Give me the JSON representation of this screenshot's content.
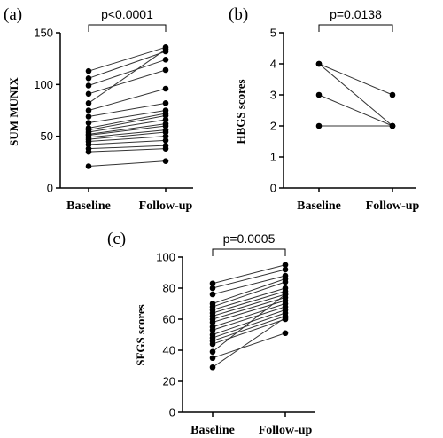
{
  "chart_data": [
    {
      "panel": "(a)",
      "type": "scatter",
      "categories": [
        "Baseline",
        "Follow-up"
      ],
      "ylabel": "SUM MUNIX",
      "ylim": [
        0,
        150
      ],
      "yticks": [
        0,
        50,
        100,
        150
      ],
      "annotation": "p<0.0001",
      "pairs": [
        [
          113,
          136
        ],
        [
          106,
          132
        ],
        [
          99,
          124
        ],
        [
          91,
          114
        ],
        [
          82,
          134
        ],
        [
          75,
          96
        ],
        [
          69,
          82
        ],
        [
          63,
          75
        ],
        [
          58,
          72
        ],
        [
          56,
          70
        ],
        [
          54,
          66
        ],
        [
          52,
          62
        ],
        [
          51,
          60
        ],
        [
          49,
          56
        ],
        [
          47,
          54
        ],
        [
          45,
          50
        ],
        [
          42,
          46
        ],
        [
          38,
          41
        ],
        [
          35,
          38
        ],
        [
          21,
          26
        ]
      ]
    },
    {
      "panel": "(b)",
      "type": "scatter",
      "categories": [
        "Baseline",
        "Follow-up"
      ],
      "ylabel": "HBGS scores",
      "ylim": [
        0,
        5
      ],
      "yticks": [
        0,
        1,
        2,
        3,
        4,
        5
      ],
      "annotation": "p=0.0138",
      "pairs": [
        [
          4,
          3
        ],
        [
          4,
          2
        ],
        [
          3,
          2
        ],
        [
          2,
          2
        ]
      ]
    },
    {
      "panel": "(c)",
      "type": "scatter",
      "categories": [
        "Baseline",
        "Follow-up"
      ],
      "ylabel": "SFGS scores",
      "ylim": [
        0,
        100
      ],
      "yticks": [
        0,
        20,
        40,
        60,
        80,
        100
      ],
      "annotation": "p=0.0005",
      "pairs": [
        [
          83,
          95
        ],
        [
          80,
          92
        ],
        [
          76,
          88
        ],
        [
          70,
          86
        ],
        [
          68,
          84
        ],
        [
          66,
          80
        ],
        [
          64,
          78
        ],
        [
          62,
          76
        ],
        [
          60,
          74
        ],
        [
          58,
          72
        ],
        [
          55,
          70
        ],
        [
          53,
          68
        ],
        [
          50,
          66
        ],
        [
          48,
          64
        ],
        [
          46,
          62
        ],
        [
          44,
          60
        ],
        [
          39,
          76
        ],
        [
          35,
          51
        ],
        [
          29,
          61
        ]
      ]
    }
  ]
}
